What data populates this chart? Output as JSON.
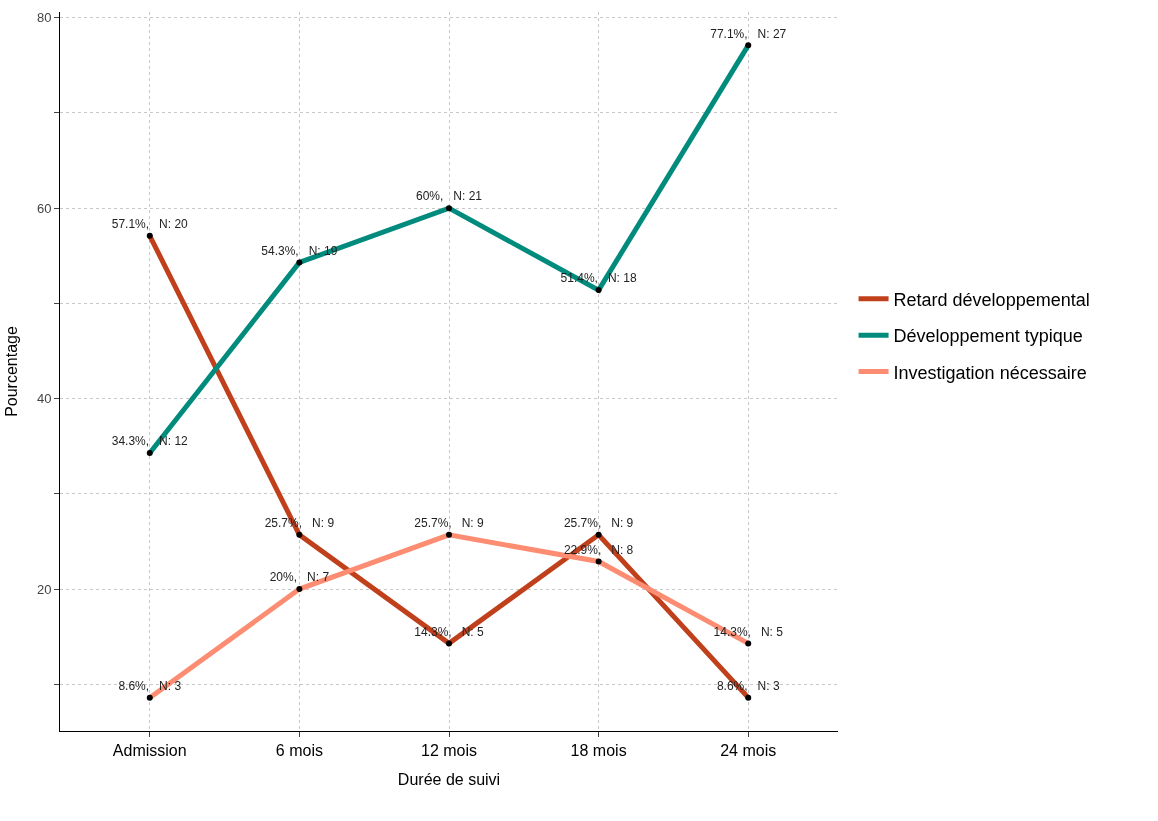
{
  "chart_data": {
    "type": "line",
    "xlabel": "Durée de suivi",
    "ylabel": "Pourcentage",
    "categories": [
      "Admission",
      "6 mois",
      "12 mois",
      "18 mois",
      "24 mois"
    ],
    "series": [
      {
        "name": "Retard développemental",
        "color": "#c0401c",
        "values": [
          57.1,
          25.7,
          14.3,
          25.7,
          8.6
        ],
        "value_labels": [
          "57.1%,   N: 20",
          "25.7%,   N: 9",
          "14.3%,   N: 5",
          "25.7%,   N: 9",
          "8.6%,   N: 3"
        ]
      },
      {
        "name": "Développement typique",
        "color": "#008b7d",
        "values": [
          34.3,
          54.3,
          60,
          51.4,
          77.1
        ],
        "value_labels": [
          "34.3%,   N: 12",
          "54.3%,   N: 19",
          "60%,   N: 21",
          "51.4%,   N: 18",
          "77.1%,   N: 27"
        ]
      },
      {
        "name": "Investigation nécessaire",
        "color": "#fc8d72",
        "values": [
          8.6,
          20,
          25.7,
          22.9,
          14.3
        ],
        "value_labels": [
          "8.6%,   N: 3",
          "20%,   N: 7",
          "25.7%,   N: 9",
          "22.9%,   N: 8",
          "14.3%,   N: 5"
        ]
      }
    ],
    "ylim": [
      5.1,
      80.6
    ],
    "yticks": [
      {
        "value": 10,
        "label": null
      },
      20,
      {
        "value": 30,
        "label": null
      },
      40,
      {
        "value": 50,
        "label": null
      },
      60,
      {
        "value": 70,
        "label": null
      },
      80
    ],
    "grid": true,
    "legend": "right",
    "marker": "circle",
    "line_style": "solid"
  }
}
